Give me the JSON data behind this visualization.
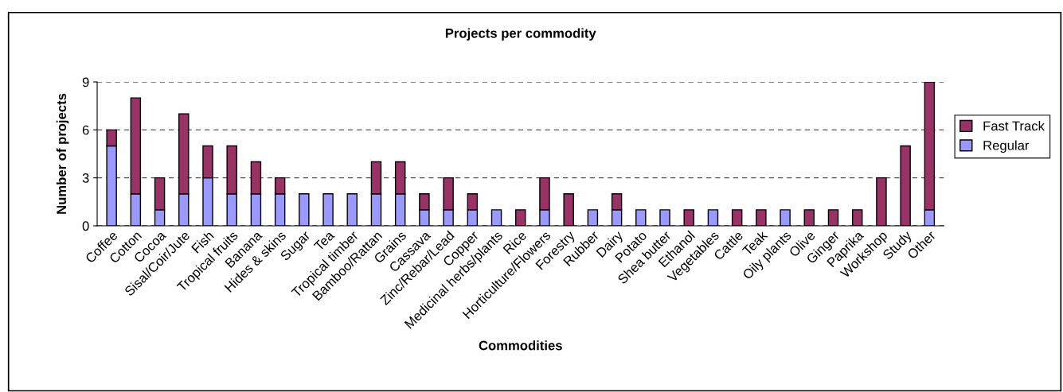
{
  "chart_data": {
    "type": "bar",
    "title": "Projects per commodity",
    "xlabel": "Commodities",
    "ylabel": "Number of projects",
    "categories": [
      "Coffee",
      "Cotton",
      "Cocoa",
      "Sisal/Coir/Jute",
      "Fish",
      "Tropical fruits",
      "Banana",
      "Hides & skins",
      "Sugar",
      "Tea",
      "Tropical timber",
      "Bamboo/Rattan",
      "Grains",
      "Cassava",
      "Zinc/Rebar/Lead",
      "Copper",
      "Medicinal herbs/plants",
      "Rice",
      "Horticulture/Flowers",
      "Forestry",
      "Rubber",
      "Dairy",
      "Potato",
      "Shea butter",
      "Ethanol",
      "Vegetables",
      "Cattle",
      "Teak",
      "Oily plants",
      "Olive",
      "Ginger",
      "Paprika",
      "Workshop",
      "Study",
      "Other"
    ],
    "series": [
      {
        "name": "Regular",
        "color": "#9999ff",
        "values": [
          5,
          2,
          1,
          2,
          3,
          2,
          2,
          2,
          2,
          2,
          2,
          2,
          2,
          1,
          1,
          1,
          1,
          0,
          1,
          0,
          1,
          1,
          1,
          1,
          0,
          1,
          0,
          0,
          1,
          0,
          0,
          0,
          0,
          0,
          1
        ]
      },
      {
        "name": "Fast Track",
        "color": "#993366",
        "values": [
          1,
          6,
          2,
          5,
          2,
          3,
          2,
          1,
          0,
          0,
          0,
          2,
          2,
          1,
          2,
          1,
          0,
          1,
          2,
          2,
          0,
          1,
          0,
          0,
          1,
          0,
          1,
          1,
          0,
          1,
          1,
          1,
          3,
          5,
          8
        ]
      }
    ],
    "stacked": true,
    "ylim": [
      0,
      9
    ],
    "yticks": [
      0,
      3,
      6,
      9
    ],
    "grid": "y",
    "legend": "right"
  }
}
